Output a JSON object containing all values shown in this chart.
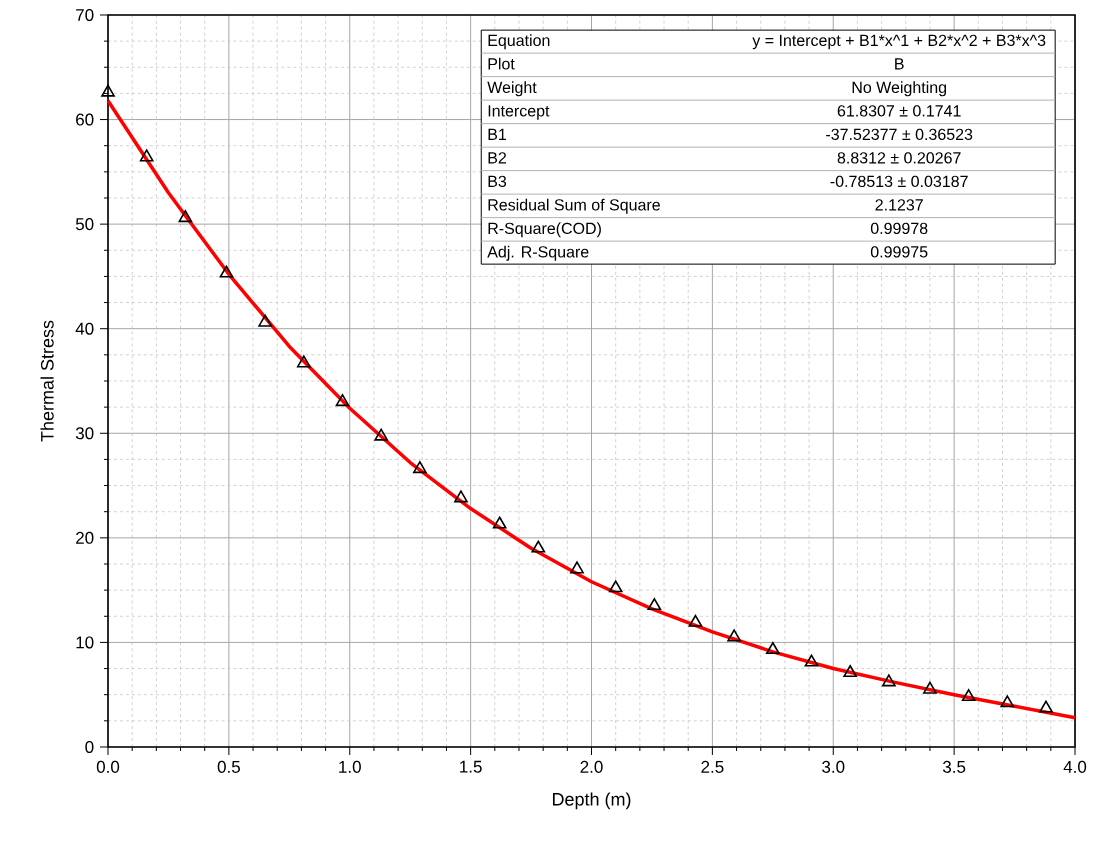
{
  "chart_data": {
    "type": "scatter",
    "xlabel": "Depth (m)",
    "ylabel": "Thermal Stress",
    "xlim": [
      0,
      4
    ],
    "ylim": [
      0,
      70
    ],
    "xticks": [
      {
        "value": 0,
        "label": "0.0"
      },
      {
        "value": 0.5,
        "label": "0.5"
      },
      {
        "value": 1,
        "label": "1.0"
      },
      {
        "value": 1.5,
        "label": "1.5"
      },
      {
        "value": 2,
        "label": "2.0"
      },
      {
        "value": 2.5,
        "label": "2.5"
      },
      {
        "value": 3,
        "label": "3.0"
      },
      {
        "value": 3.5,
        "label": "3.5"
      },
      {
        "value": 4,
        "label": "4.0"
      }
    ],
    "yticks": [
      0,
      10,
      20,
      30,
      40,
      50,
      60,
      70
    ],
    "grid": true,
    "series": [
      {
        "marker": "triangle",
        "color": "#000000",
        "x": [
          0,
          0.16,
          0.32,
          0.49,
          0.65,
          0.81,
          0.97,
          1.13,
          1.29,
          1.46,
          1.62,
          1.78,
          1.94,
          2.1,
          2.26,
          2.43,
          2.59,
          2.75,
          2.91,
          3.07,
          3.23,
          3.4,
          3.56,
          3.72,
          3.88
        ],
        "values": [
          62.6,
          56.4,
          50.6,
          45.3,
          40.6,
          36.7,
          33.0,
          29.7,
          26.6,
          23.8,
          21.3,
          19.0,
          17.0,
          15.2,
          13.5,
          11.9,
          10.5,
          9.3,
          8.1,
          7.1,
          6.2,
          5.5,
          4.8,
          4.2,
          3.7
        ]
      },
      {
        "type": "line",
        "marker": "none",
        "color": "#ff0000",
        "x": [
          0,
          0.25,
          0.5,
          0.75,
          1,
          1.25,
          1.5,
          1.75,
          2,
          2.25,
          2.5,
          2.75,
          3,
          3.25,
          3.5,
          3.75,
          4
        ],
        "values": [
          61.8,
          53.0,
          45.2,
          38.3,
          32.4,
          27.2,
          22.8,
          19.0,
          15.8,
          13.2,
          11.0,
          9.1,
          7.5,
          6.2,
          5.0,
          3.9,
          2.8
        ]
      }
    ],
    "annotations": [
      "Equation",
      "y = Intercept + B1*x^1 + B2*x^2 + B3*x^3",
      "Plot",
      "B",
      "Weight",
      "No Weighting",
      "Intercept",
      "61.8307 ± 0.1741",
      "B1",
      "-37.52377 ± 0.36523",
      "B2",
      "8.8312 ± 0.20267",
      "B3",
      "-0.78513 ± 0.03187",
      "Residual Sum of Square",
      "2.1237",
      "R-Square(COD)",
      "0.99978",
      "Adj. R-Square",
      "0.99975"
    ]
  }
}
